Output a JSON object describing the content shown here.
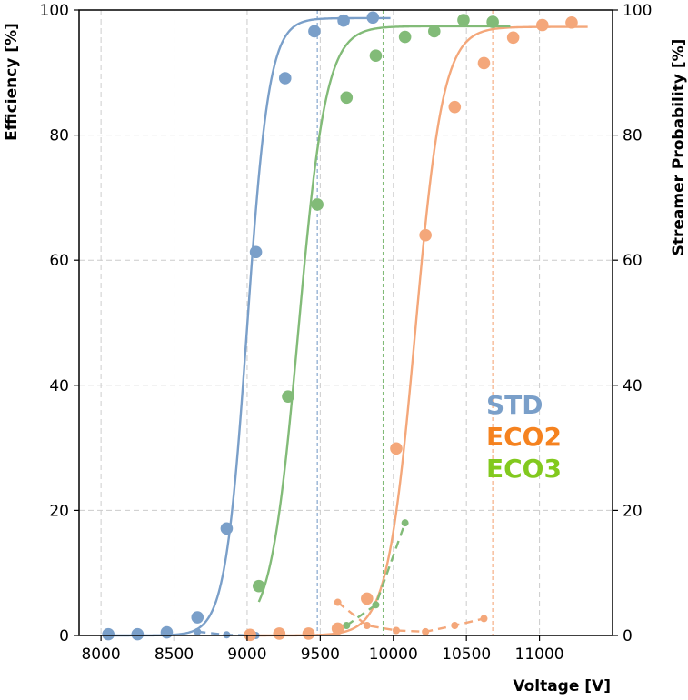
{
  "chart_data": {
    "type": "scatter",
    "xlabel": "Voltage [V]",
    "ylabel": "Efficiency [%]",
    "y2label": "Streamer Probability [%]",
    "xlim": [
      7850,
      11500
    ],
    "ylim": [
      0,
      100
    ],
    "y2lim": [
      0,
      100
    ],
    "x_ticks": [
      8000,
      8500,
      9000,
      9500,
      10000,
      10500,
      11000
    ],
    "y_ticks": [
      0,
      20,
      40,
      60,
      80,
      100
    ],
    "grid": true,
    "legend": {
      "position": "center-right",
      "entries": [
        "STD",
        "ECO2",
        "ECO3"
      ]
    },
    "series": [
      {
        "name": "STD",
        "color": "#7a9fc9",
        "legend_color": "#7a9fc9",
        "efficiency": {
          "x": [
            8050,
            8250,
            8450,
            8660,
            8860,
            9060,
            9260,
            9460,
            9660,
            9860
          ],
          "y": [
            0.2,
            0.2,
            0.5,
            2.9,
            17.1,
            61.3,
            89.1,
            96.6,
            98.3,
            98.8
          ]
        },
        "fit": {
          "plateau": 98.7,
          "v50": 9000,
          "slope": 75,
          "x_range": [
            8050,
            9980
          ]
        },
        "streamer": {
          "x": [
            8660,
            8860,
            9060
          ],
          "y": [
            0.6,
            0.1,
            0.0
          ]
        },
        "working_point": 9480
      },
      {
        "name": "ECO2",
        "color": "#f4a77a",
        "legend_color": "#f5821f",
        "efficiency": {
          "x": [
            9020,
            9220,
            9420,
            9620,
            9820,
            10020,
            10220,
            10420,
            10620,
            10820,
            11020,
            11220
          ],
          "y": [
            0.1,
            0.3,
            0.3,
            1.1,
            5.9,
            29.9,
            64.0,
            84.5,
            91.5,
            95.6,
            97.6,
            98.0
          ]
        },
        "fit": {
          "plateau": 97.3,
          "v50": 10150,
          "slope": 95,
          "x_range": [
            9020,
            11330
          ]
        },
        "streamer": {
          "x": [
            9620,
            9820,
            10020,
            10220,
            10420,
            10620
          ],
          "y": [
            5.3,
            1.6,
            0.8,
            0.6,
            1.6,
            2.7
          ]
        },
        "working_point": 10680
      },
      {
        "name": "ECO3",
        "color": "#82bb78",
        "legend_color": "#82c91e",
        "efficiency": {
          "x": [
            9080,
            9280,
            9480,
            9680,
            9880,
            10080,
            10280,
            10480,
            10680
          ],
          "y": [
            7.9,
            38.2,
            68.9,
            86.0,
            92.7,
            95.7,
            96.6,
            98.4,
            98.1
          ]
        },
        "fit": {
          "plateau": 97.4,
          "v50": 9350,
          "slope": 95,
          "x_range": [
            9080,
            10800
          ]
        },
        "streamer": {
          "x": [
            9680,
            9880,
            10080
          ],
          "y": [
            1.6,
            4.9,
            18.0
          ]
        },
        "working_point": 9930
      }
    ]
  }
}
